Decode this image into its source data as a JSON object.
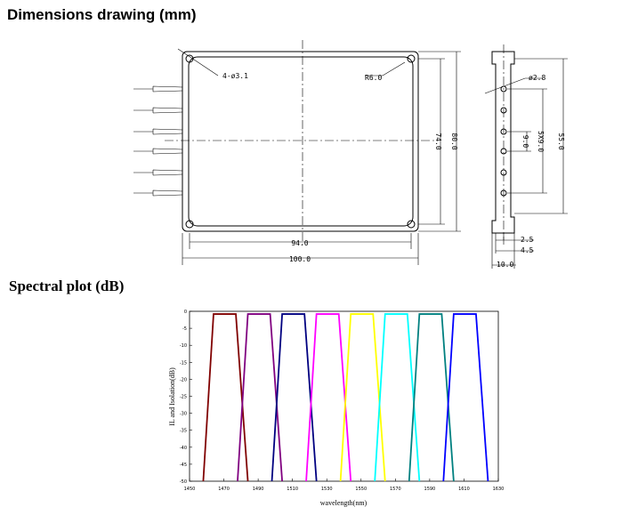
{
  "header": {
    "title": "Dimensions drawing (mm)"
  },
  "drawing": {
    "hole": "4-ø3.1",
    "radius": "R6.0",
    "inner_height": "74.0",
    "outer_height": "80.0",
    "inner_width": "94.0",
    "outer_width": "100.0",
    "fiber_hole": "ø2.8",
    "pitch": "9.0",
    "pitch_total": "5X9.0",
    "side_height": "55.0",
    "flange": "2.5",
    "step": "4.5",
    "thickness": "10.0"
  },
  "chart_data": {
    "type": "line",
    "title": "Spectral plot (dB)",
    "x_label": "wavelength(nm)",
    "y_label": "IL and Isolation(dB)",
    "xlim": [
      1450,
      1630
    ],
    "xticks": [
      1450,
      1470,
      1490,
      1510,
      1530,
      1550,
      1570,
      1590,
      1610,
      1630
    ],
    "ylim": [
      -50,
      0
    ],
    "yticks": [
      0,
      -5,
      -10,
      -15,
      -20,
      -25,
      -30,
      -35,
      -40,
      -45,
      -50
    ],
    "series": [
      {
        "color": "#800000",
        "x": [
          1458,
          1464,
          1477,
          1484
        ],
        "values": [
          -50,
          -0.8,
          -0.8,
          -50
        ]
      },
      {
        "color": "#800080",
        "x": [
          1478,
          1484,
          1497,
          1504
        ],
        "values": [
          -50,
          -0.8,
          -0.8,
          -50
        ]
      },
      {
        "color": "#000080",
        "x": [
          1498,
          1504,
          1517,
          1524
        ],
        "values": [
          -50,
          -0.8,
          -0.8,
          -50
        ]
      },
      {
        "color": "#ff00ff",
        "x": [
          1518,
          1524,
          1537,
          1544
        ],
        "values": [
          -50,
          -0.8,
          -0.8,
          -50
        ]
      },
      {
        "color": "#ffff00",
        "x": [
          1538,
          1544,
          1557,
          1564
        ],
        "values": [
          -50,
          -0.8,
          -0.8,
          -50
        ]
      },
      {
        "color": "#00ffff",
        "x": [
          1558,
          1564,
          1577,
          1584
        ],
        "values": [
          -50,
          -0.8,
          -0.8,
          -50
        ]
      },
      {
        "color": "#008080",
        "x": [
          1578,
          1584,
          1597,
          1604
        ],
        "values": [
          -50,
          -0.8,
          -0.8,
          -50
        ]
      },
      {
        "color": "#0000ff",
        "x": [
          1598,
          1604,
          1617,
          1624
        ],
        "values": [
          -50,
          -0.8,
          -0.8,
          -50
        ]
      }
    ]
  }
}
